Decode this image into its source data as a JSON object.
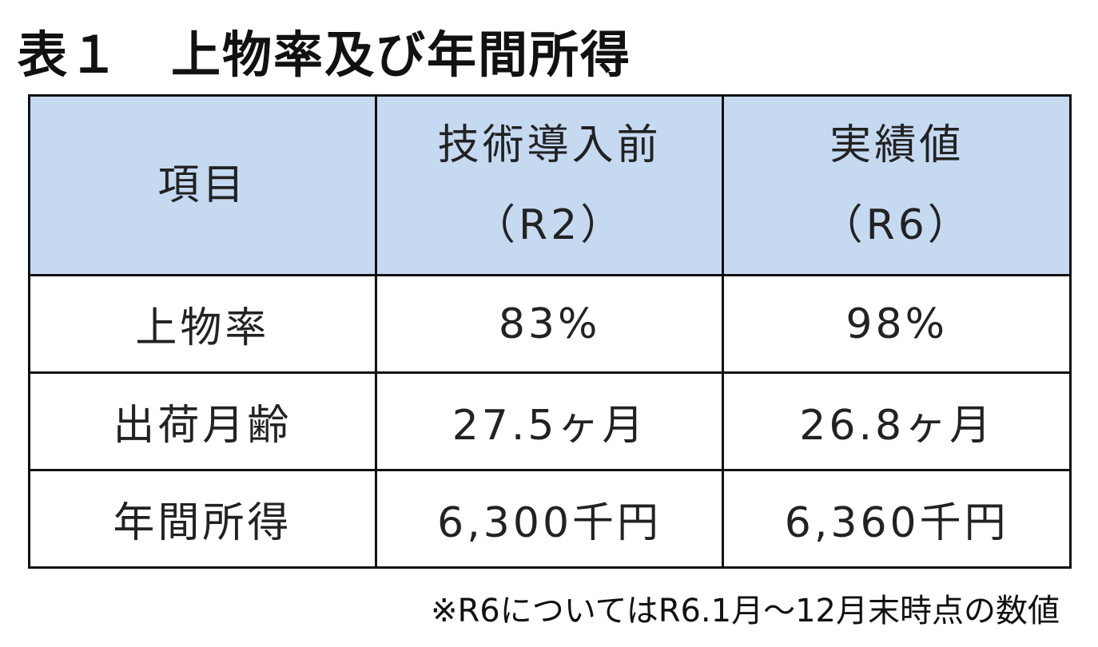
{
  "title": "表１　上物率及び年間所得",
  "table": {
    "header": [
      [
        "項目"
      ],
      [
        "技術導入前",
        "（R2）"
      ],
      [
        "実績値",
        "（R6）"
      ]
    ],
    "rows": [
      [
        "上物率",
        "83%",
        "98%"
      ],
      [
        "出荷月齢",
        "27.5ヶ月",
        "26.8ヶ月"
      ],
      [
        "年間所得",
        "6,300千円",
        "6,360千円"
      ]
    ]
  },
  "footnote": "※R6についてはR6.1月～12月末時点の数値"
}
